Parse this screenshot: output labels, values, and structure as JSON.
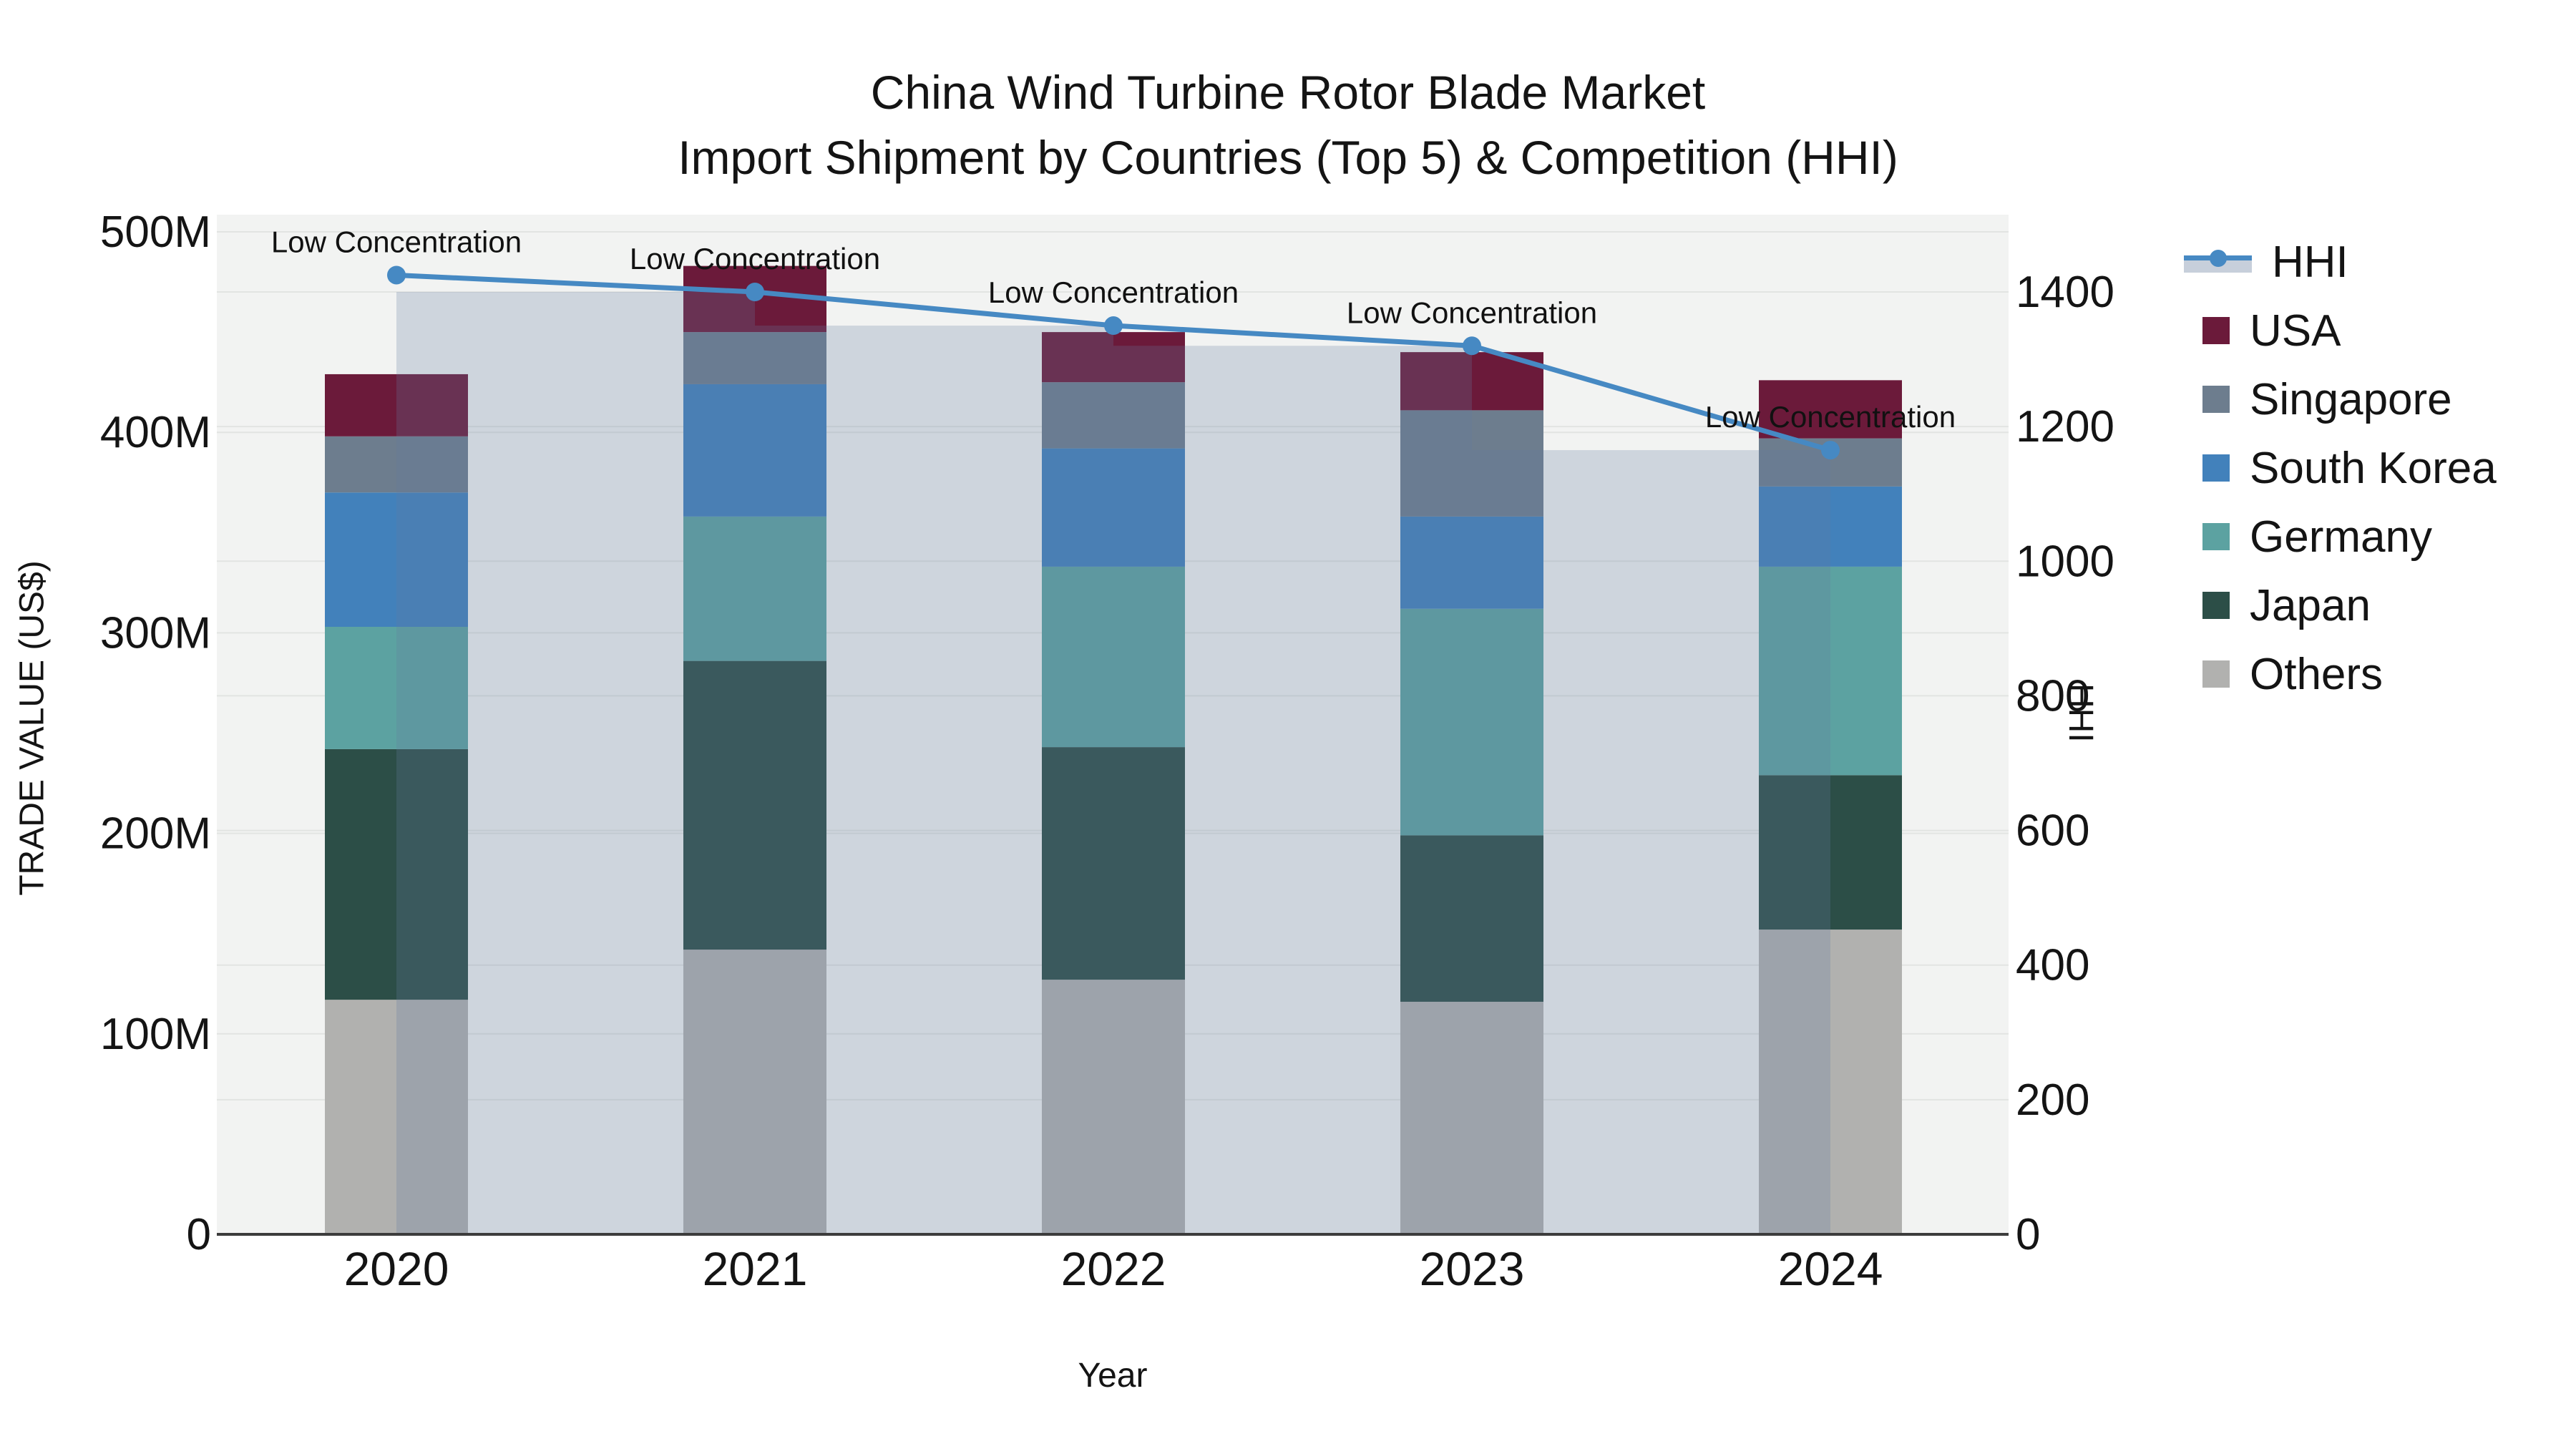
{
  "title": {
    "line1": "China Wind Turbine Rotor Blade Market",
    "line2": "Import Shipment by Countries (Top 5) & Competition (HHI)"
  },
  "chart_data": {
    "type": "combo (stacked bar + line)",
    "categories": [
      "2020",
      "2021",
      "2022",
      "2023",
      "2024"
    ],
    "bar_unit": "millions US$",
    "series": [
      {
        "name": "USA",
        "color": "#6b1a3a",
        "values": [
          31,
          33,
          25,
          29,
          29
        ]
      },
      {
        "name": "Singapore",
        "color": "#6d7d8e",
        "values": [
          28,
          26,
          33,
          53,
          24
        ]
      },
      {
        "name": "South Korea",
        "color": "#4281bb",
        "values": [
          67,
          66,
          59,
          46,
          40
        ]
      },
      {
        "name": "Germany",
        "color": "#5ca2a1",
        "values": [
          61,
          72,
          90,
          113,
          104
        ]
      },
      {
        "name": "Japan",
        "color": "#2c4e47",
        "values": [
          125,
          144,
          116,
          83,
          77
        ]
      },
      {
        "name": "Others",
        "color": "#b1b1af",
        "values": [
          117,
          142,
          127,
          116,
          152
        ]
      }
    ],
    "bar_totals": [
      429,
      483,
      450,
      440,
      426
    ],
    "stack_note": "stacked bottom-to-top: Others, Japan, Germany, South Korea, Singapore, USA",
    "line_series": {
      "name": "HHI",
      "color": "#4689c3",
      "fill_color": "rgba(99,124,158,0.25)",
      "fill_style": "step-before area under line",
      "values": [
        1425,
        1400,
        1350,
        1320,
        1165
      ]
    },
    "annotations": [
      {
        "x": "2020",
        "label": "Low Concentration"
      },
      {
        "x": "2021",
        "label": "Low Concentration"
      },
      {
        "x": "2022",
        "label": "Low Concentration"
      },
      {
        "x": "2023",
        "label": "Low Concentration"
      },
      {
        "x": "2024",
        "label": "Low Concentration"
      }
    ],
    "left_axis": {
      "title": "TRADE VALUE (US$)",
      "ticks": [
        0,
        100,
        200,
        300,
        400,
        500
      ],
      "tick_labels": [
        "0",
        "100M",
        "200M",
        "300M",
        "400M",
        "500M"
      ],
      "max_value": 500
    },
    "right_axis": {
      "title": "HHI",
      "ticks": [
        0,
        200,
        400,
        600,
        800,
        1000,
        1200,
        1400
      ],
      "tick_labels": [
        "0",
        "200",
        "400",
        "600",
        "800",
        "1000",
        "1200",
        "1400"
      ],
      "max_value": 1400
    },
    "x_axis": {
      "title": "Year"
    },
    "legend": [
      "HHI",
      "USA",
      "Singapore",
      "South Korea",
      "Germany",
      "Japan",
      "Others"
    ],
    "plot_bg_color": "#f2f3f2",
    "grid_color": "#e2e4e2",
    "axis_line_color": "#3c3c3c",
    "grid": true,
    "legend_position": "right"
  }
}
